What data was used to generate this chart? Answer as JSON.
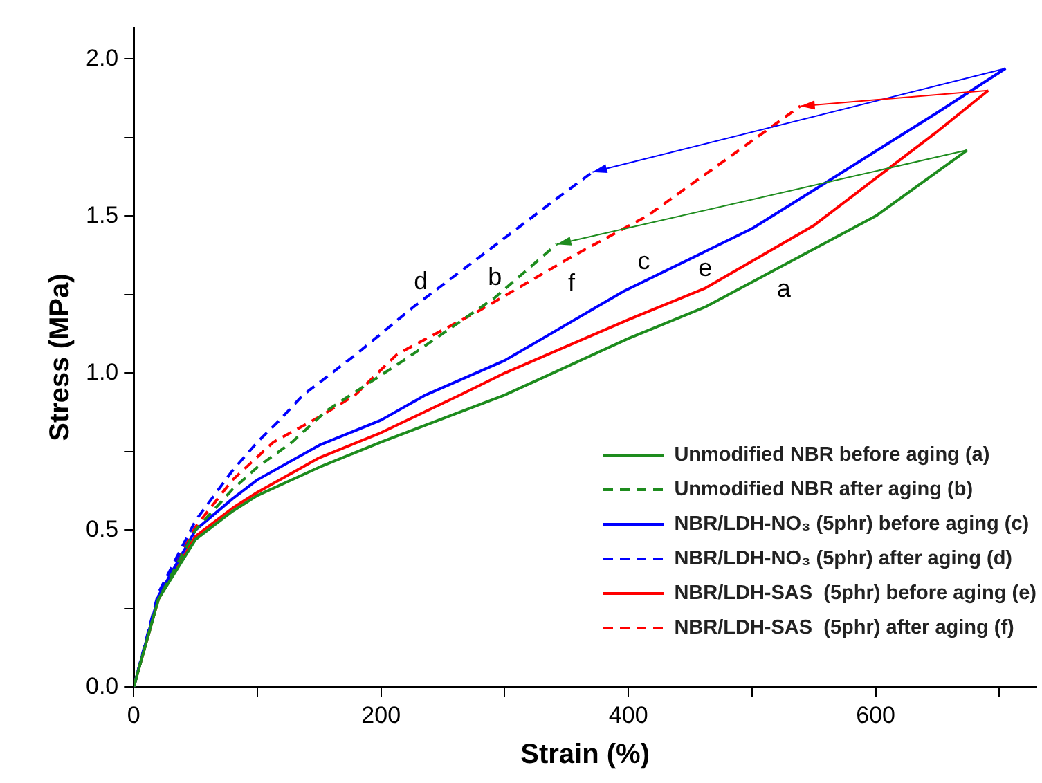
{
  "chart_data": {
    "type": "line",
    "xlabel": "Strain (%)",
    "ylabel": "Stress (MPa)",
    "xlim": [
      0,
      730
    ],
    "ylim": [
      0,
      2.1
    ],
    "xticks": [
      0,
      {
        "value": 100,
        "label": null
      },
      200,
      {
        "value": 300,
        "label": null
      },
      400,
      {
        "value": 500,
        "label": null
      },
      600,
      {
        "value": 700,
        "label": null
      }
    ],
    "yticks": [
      {
        "value": 0,
        "label": "0.0"
      },
      {
        "value": 0.25,
        "label": null
      },
      {
        "value": 0.5,
        "label": "0.5"
      },
      {
        "value": 0.75,
        "label": null
      },
      {
        "value": 1,
        "label": "1.0"
      },
      {
        "value": 1.25,
        "label": null
      },
      {
        "value": 1.5,
        "label": "1.5"
      },
      {
        "value": 1.75,
        "label": null
      },
      {
        "value": 2,
        "label": "2.0"
      }
    ],
    "grid": false,
    "legend": "bottom right",
    "marker": "none",
    "series": [
      {
        "name": "Unmodified NBR before aging (a)",
        "color": "#1e8c1e",
        "line_style": "solid",
        "x": [
          0,
          20,
          50,
          80,
          100,
          150,
          200,
          300,
          400,
          462,
          500,
          600,
          674
        ],
        "values": [
          0,
          0.28,
          0.47,
          0.56,
          0.61,
          0.7,
          0.78,
          0.93,
          1.11,
          1.21,
          1.29,
          1.5,
          1.71
        ]
      },
      {
        "name": "Unmodified NBR after aging (b)",
        "color": "#1e8c1e",
        "line_style": "dashed",
        "x": [
          0,
          20,
          50,
          80,
          100,
          128,
          156,
          222,
          292,
          342
        ],
        "values": [
          0,
          0.28,
          0.5,
          0.63,
          0.7,
          0.78,
          0.88,
          1.05,
          1.24,
          1.41
        ]
      },
      {
        "name": "NBR/LDH-NO₃ (5phr) before aging (c)",
        "color": "#0000ff",
        "line_style": "solid",
        "x": [
          0,
          20,
          50,
          80,
          100,
          150,
          200,
          236,
          300,
          396,
          500,
          557,
          650,
          705
        ],
        "values": [
          0,
          0.29,
          0.5,
          0.6,
          0.66,
          0.77,
          0.85,
          0.93,
          1.04,
          1.26,
          1.46,
          1.6,
          1.83,
          1.97
        ]
      },
      {
        "name": "NBR/LDH-NO₃ (5phr) after aging (d)",
        "color": "#0000ff",
        "line_style": "dashed",
        "x": [
          0,
          20,
          50,
          80,
          100,
          118,
          137,
          180,
          226,
          300,
          340,
          371
        ],
        "values": [
          0,
          0.3,
          0.53,
          0.69,
          0.78,
          0.85,
          0.93,
          1.06,
          1.21,
          1.43,
          1.55,
          1.64
        ]
      },
      {
        "name": "NBR/LDH-SAS  (5phr) before aging (e)",
        "color": "#ff0000",
        "line_style": "solid",
        "x": [
          0,
          20,
          50,
          80,
          100,
          150,
          200,
          264,
          300,
          400,
          462,
          550,
          650,
          691
        ],
        "values": [
          0,
          0.28,
          0.48,
          0.57,
          0.62,
          0.73,
          0.81,
          0.93,
          1,
          1.17,
          1.27,
          1.47,
          1.77,
          1.9
        ]
      },
      {
        "name": "NBR/LDH-SAS  (5phr) after aging (f)",
        "color": "#ff0000",
        "line_style": "dashed",
        "x": [
          0,
          20,
          50,
          80,
          113,
          150,
          179,
          213,
          280,
          354,
          415,
          486,
          539
        ],
        "values": [
          0,
          0.29,
          0.51,
          0.66,
          0.78,
          0.86,
          0.93,
          1.06,
          1.2,
          1.37,
          1.5,
          1.7,
          1.85
        ]
      }
    ],
    "annotations": [
      "a",
      "b",
      "c",
      "d",
      "e",
      "f"
    ]
  }
}
